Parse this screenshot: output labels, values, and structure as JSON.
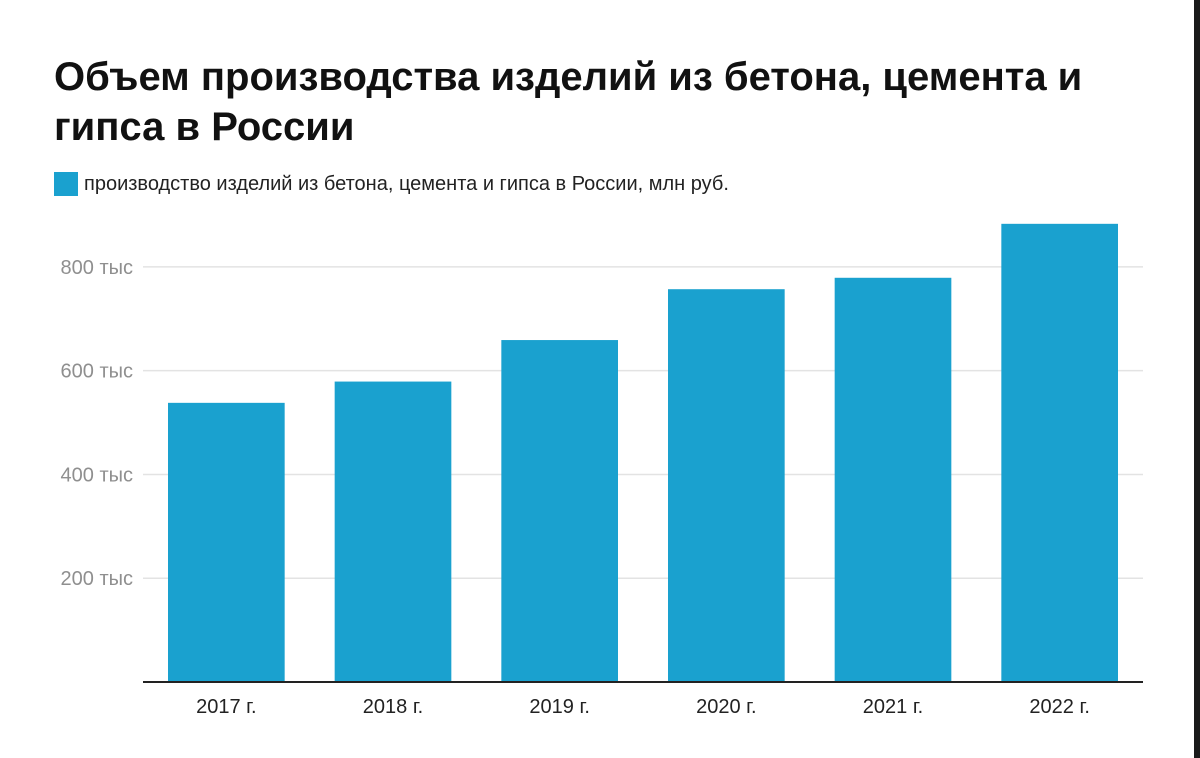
{
  "chart_data": {
    "type": "bar",
    "title": "Объем производства изделий из бетона, цемента и гипса в России",
    "series": [
      {
        "name": "производство изделий из бетона, цемента и гипса в России, млн руб.",
        "values": [
          538000,
          579000,
          659000,
          757000,
          779000,
          883000
        ]
      }
    ],
    "categories": [
      "2017 г.",
      "2018 г.",
      "2019 г.",
      "2020 г.",
      "2021 г.",
      "2022 г."
    ],
    "y_ticks": [
      {
        "value": 200000,
        "label": "200 тыс"
      },
      {
        "value": 400000,
        "label": "400 тыс"
      },
      {
        "value": 600000,
        "label": "600 тыс"
      },
      {
        "value": 800000,
        "label": "800 тыс"
      }
    ],
    "ylim": [
      0,
      900000
    ],
    "xlabel": "",
    "ylabel": "",
    "grid": true,
    "legend_position": "top-left",
    "colors": {
      "bar": "#1aa1cf",
      "grid": "#e3e3e3",
      "axis": "#222222"
    }
  }
}
